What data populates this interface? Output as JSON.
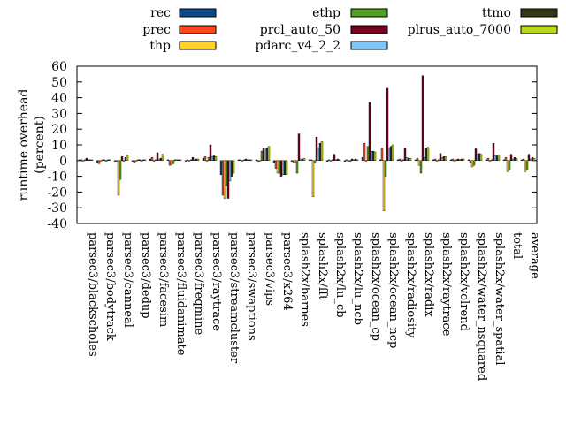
{
  "chart_data": {
    "type": "bar",
    "ylabel": "runtime overhead (percent)",
    "ylabel_lines": [
      "runtime overhead",
      "(percent)"
    ],
    "ylim": [
      -40,
      60
    ],
    "yticks": [
      -40,
      -30,
      -20,
      -10,
      0,
      10,
      20,
      30,
      40,
      50,
      60
    ],
    "grid": false,
    "legend_position": "top",
    "categories": [
      "parsec3/blackscholes",
      "parsec3/bodytrack",
      "parsec3/canneal",
      "parsec3/dedup",
      "parsec3/facesim",
      "parsec3/fluidanimate",
      "parsec3/freqmine",
      "parsec3/raytrace",
      "parsec3/streamcluster",
      "parsec3/swaptions",
      "parsec3/vips",
      "parsec3/x264",
      "splash2x/barnes",
      "splash2x/fft",
      "splash2x/lu_cb",
      "splash2x/lu_ncb",
      "splash2x/ocean_cp",
      "splash2x/ocean_ncp",
      "splash2x/radiosity",
      "splash2x/radix",
      "splash2x/raytrace",
      "splash2x/volrend",
      "splash2x/water_nsquared",
      "splash2x/water_spatial",
      "total",
      "average"
    ],
    "series": [
      {
        "name": "rec",
        "color": "#0b4a8a",
        "values": [
          0.5,
          -1.0,
          0,
          0,
          1.0,
          0.5,
          0,
          1.5,
          -9.0,
          0.5,
          0.5,
          -1.5,
          -0.5,
          0.5,
          -0.5,
          -0.5,
          2.0,
          0.5,
          0.5,
          0.5,
          0.5,
          0.5,
          0.5,
          0.5,
          0.5,
          0.5
        ]
      },
      {
        "name": "prec",
        "color": "#ff4a1f",
        "values": [
          0.5,
          -2.0,
          0,
          -1.0,
          2.0,
          -3.0,
          0.5,
          2.5,
          -22.0,
          0.5,
          -0.5,
          -5.0,
          -1.0,
          0.5,
          0.5,
          0.5,
          11.0,
          8.0,
          1.0,
          1.5,
          1.0,
          1.0,
          -1.0,
          1.5,
          2.0,
          1.0
        ]
      },
      {
        "name": "thp",
        "color": "#ffd22b",
        "values": [
          0,
          0,
          -22.0,
          0,
          0,
          -2.5,
          0,
          0,
          -24.0,
          0,
          0,
          -8.0,
          -1.0,
          -23.0,
          0,
          0,
          0,
          -32.0,
          0,
          -3.0,
          0,
          0,
          -4.0,
          0,
          -7.0,
          -7.0
        ]
      },
      {
        "name": "ethp",
        "color": "#55a022",
        "values": [
          0.5,
          0.5,
          -12.0,
          0.5,
          0.5,
          -2.0,
          0.5,
          2.0,
          -16.0,
          0.5,
          6.0,
          -8.0,
          -8.0,
          -1.5,
          0.5,
          -0.5,
          9.0,
          -10.0,
          0.5,
          -8.0,
          0.5,
          0.5,
          -3.0,
          0.5,
          -6.0,
          -6.0
        ]
      },
      {
        "name": "prcl_auto_50",
        "color": "#7a0020",
        "values": [
          1.5,
          0.5,
          2.5,
          0.5,
          5.0,
          0.5,
          2.0,
          10.0,
          -24.0,
          1.0,
          8.0,
          -10.0,
          17.0,
          15.0,
          4.0,
          1.0,
          37.0,
          46.0,
          8.0,
          54.0,
          4.5,
          1.0,
          7.5,
          11.0,
          4.0,
          4.0
        ]
      },
      {
        "name": "pdarc_v4_2_2",
        "color": "#7fc6f7",
        "values": [
          0.5,
          -0.5,
          0,
          0,
          1.0,
          0.5,
          0.5,
          2.5,
          -13.0,
          0.5,
          8.0,
          -9.0,
          1.0,
          8.0,
          0.5,
          0.5,
          6.0,
          8.0,
          2.0,
          2.0,
          2.0,
          0.5,
          4.0,
          3.0,
          1.0,
          1.0
        ]
      },
      {
        "name": "ttmo",
        "color": "#333a12",
        "values": [
          0.5,
          0.5,
          2.0,
          0.5,
          1.5,
          0.5,
          1.0,
          3.0,
          -10.0,
          0.5,
          8.0,
          -9.0,
          1.0,
          11.0,
          1.0,
          1.0,
          6.0,
          9.0,
          1.5,
          8.0,
          2.5,
          1.0,
          4.5,
          3.0,
          2.0,
          2.0
        ]
      },
      {
        "name": "plrus_auto_7000",
        "color": "#b8d81a",
        "values": [
          0.5,
          0.5,
          3.5,
          0.5,
          4.0,
          0.5,
          1.0,
          2.5,
          -8.0,
          0.5,
          9.0,
          -9.0,
          1.5,
          12.0,
          0.5,
          0.5,
          5.5,
          10.0,
          1.5,
          8.5,
          2.5,
          1.0,
          4.0,
          3.5,
          1.5,
          1.5
        ]
      }
    ]
  }
}
